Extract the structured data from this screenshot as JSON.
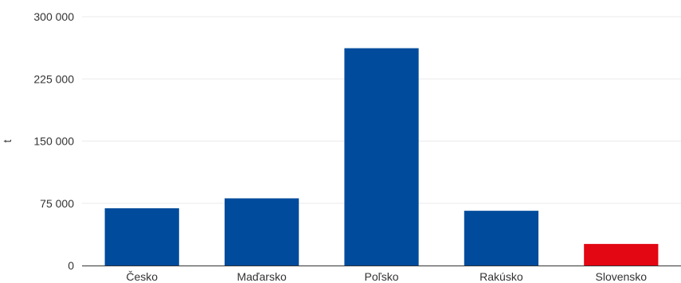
{
  "chart_data": {
    "type": "bar",
    "categories": [
      "Česko",
      "Maďarsko",
      "Poľsko",
      "Rakúsko",
      "Slovensko"
    ],
    "values": [
      69000,
      81000,
      262000,
      66000,
      26000
    ],
    "colors": [
      "#004b9c",
      "#004b9c",
      "#004b9c",
      "#004b9c",
      "#e30613"
    ],
    "ylabel": "t",
    "ylim": [
      0,
      300000
    ],
    "yticks": [
      0,
      75000,
      150000,
      225000,
      300000
    ],
    "ytick_labels": [
      "0",
      "75 000",
      "150 000",
      "225 000",
      "300 000"
    ],
    "grid": true
  }
}
